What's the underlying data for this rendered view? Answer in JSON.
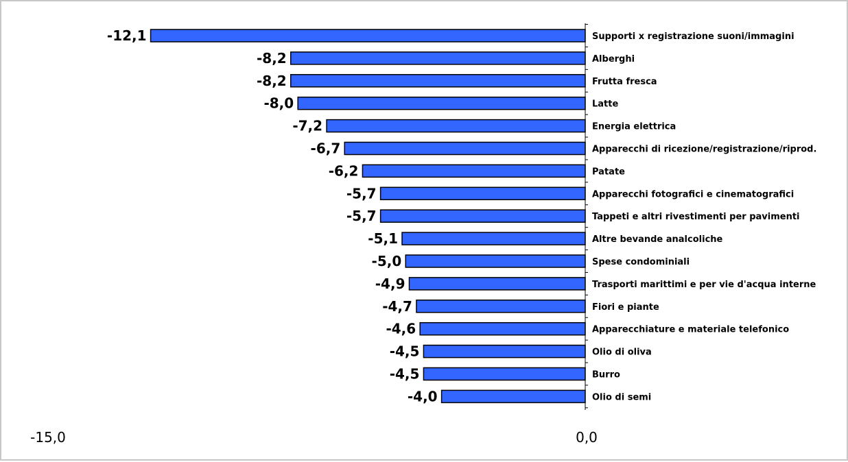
{
  "chart_data": {
    "type": "bar",
    "orientation": "horizontal",
    "title": "",
    "xlabel": "",
    "ylabel": "",
    "xlim": [
      -15,
      0
    ],
    "x_ticks": [
      "-15,0",
      "0,0"
    ],
    "grid": false,
    "legend": false,
    "bar_color": "#3366ff",
    "bar_outline": "#000000",
    "categories": [
      "Supporti x registrazione suoni/immagini",
      "Alberghi",
      "Frutta fresca",
      "Latte",
      "Energia elettrica",
      "Apparecchi di ricezione/registrazione/riprod.",
      "Patate",
      "Apparecchi fotografici e cinematografici",
      "Tappeti e altri rivestimenti per pavimenti",
      "Altre bevande analcoliche",
      "Spese condominiali",
      "Trasporti marittimi e per vie d'acqua interne",
      "Fiori e piante",
      "Apparecchiature e materiale telefonico",
      "Olio di oliva",
      "Burro",
      "Olio di semi"
    ],
    "values": [
      -12.1,
      -8.2,
      -8.2,
      -8.0,
      -7.2,
      -6.7,
      -6.2,
      -5.7,
      -5.7,
      -5.1,
      -5.0,
      -4.9,
      -4.7,
      -4.6,
      -4.5,
      -4.5,
      -4.0
    ],
    "value_labels": [
      "-12,1",
      "-8,2",
      "-8,2",
      "-8,0",
      "-7,2",
      "-6,7",
      "-6,2",
      "-5,7",
      "-5,7",
      "-5,1",
      "-5,0",
      "-4,9",
      "-4,7",
      "-4,6",
      "-4,5",
      "-4,5",
      "-4,0"
    ]
  }
}
